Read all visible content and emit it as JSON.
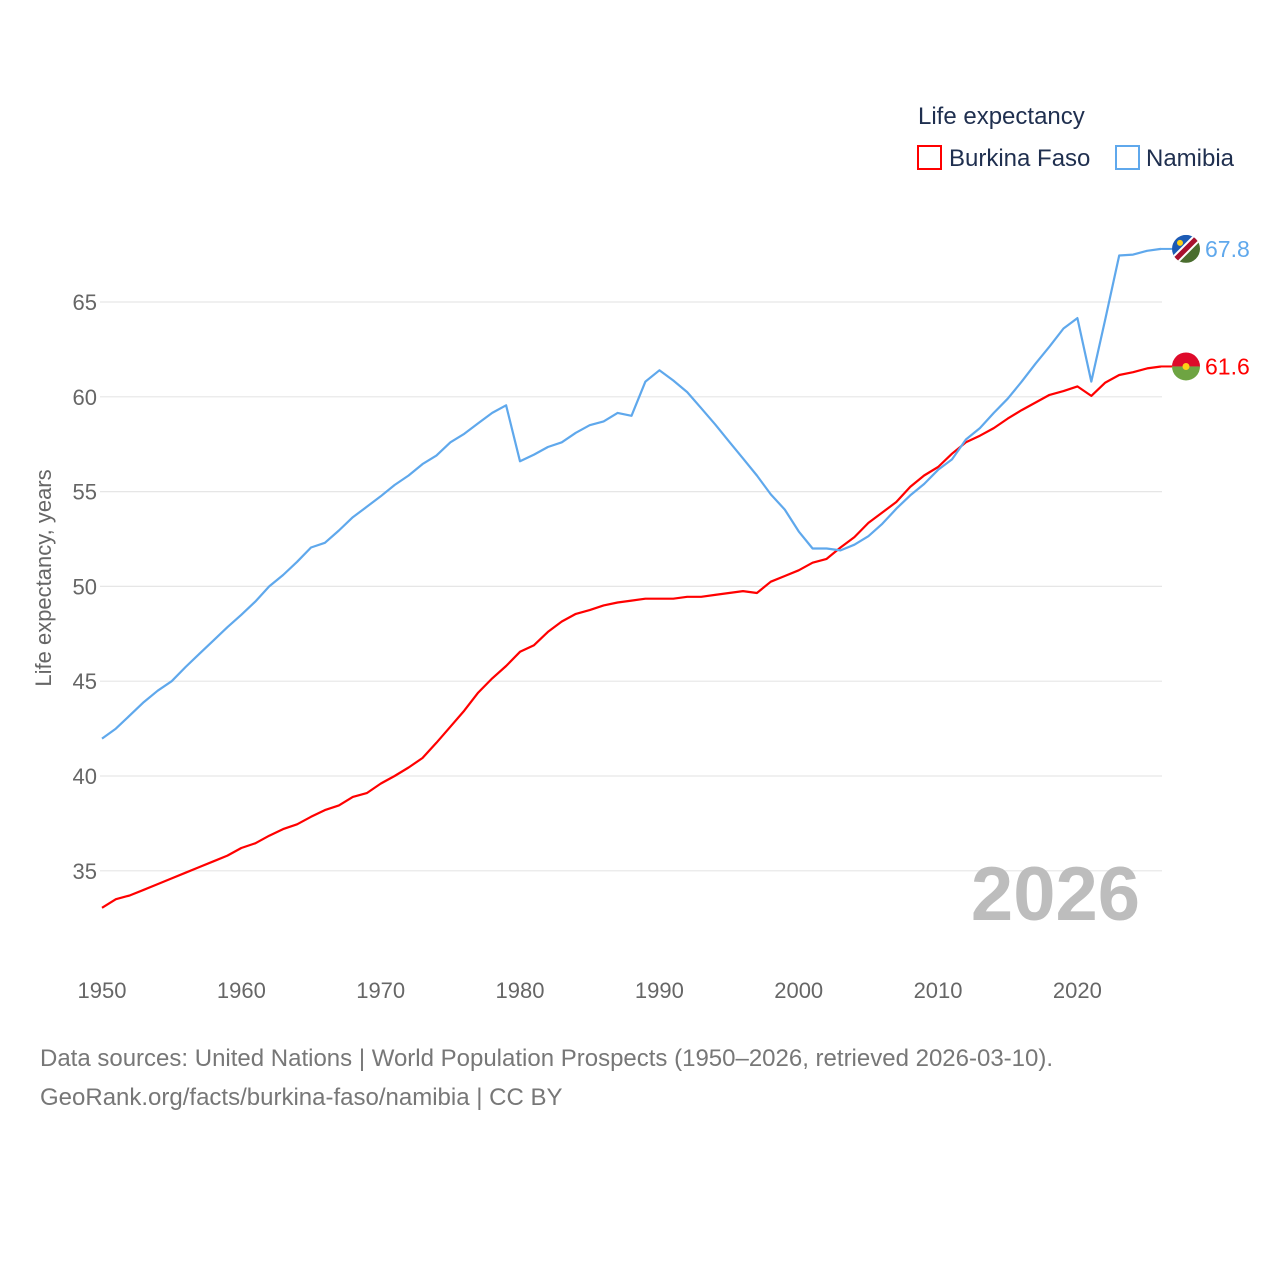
{
  "chart_data": {
    "type": "line",
    "title": "Life expectancy",
    "xlabel": "",
    "ylabel": "Life expectancy, years",
    "xlim": [
      1950,
      2026
    ],
    "ylim": [
      31,
      69
    ],
    "grid": true,
    "legend_position": "top-right",
    "x_ticks": [
      1950,
      1960,
      1970,
      1980,
      1990,
      2000,
      2010,
      2020
    ],
    "y_ticks": [
      35,
      40,
      45,
      50,
      55,
      60,
      65
    ],
    "watermark_year": "2026",
    "x": [
      1950,
      1951,
      1952,
      1953,
      1954,
      1955,
      1956,
      1957,
      1958,
      1959,
      1960,
      1961,
      1962,
      1963,
      1964,
      1965,
      1966,
      1967,
      1968,
      1969,
      1970,
      1971,
      1972,
      1973,
      1974,
      1975,
      1976,
      1977,
      1978,
      1979,
      1980,
      1981,
      1982,
      1983,
      1984,
      1985,
      1986,
      1987,
      1988,
      1989,
      1990,
      1991,
      1992,
      1993,
      1994,
      1995,
      1996,
      1997,
      1998,
      1999,
      2000,
      2001,
      2002,
      2003,
      2004,
      2005,
      2006,
      2007,
      2008,
      2009,
      2010,
      2011,
      2012,
      2013,
      2014,
      2015,
      2016,
      2017,
      2018,
      2019,
      2020,
      2021,
      2022,
      2023,
      2024,
      2025,
      2026
    ],
    "series": [
      {
        "name": "Burkina Faso",
        "color": "#ff0000",
        "flag": "burkina-faso-flag",
        "end_label": "61.6",
        "values": [
          33.05,
          33.5,
          33.7,
          34.0,
          34.3,
          34.6,
          34.9,
          35.2,
          35.5,
          35.8,
          36.2,
          36.45,
          36.85,
          37.2,
          37.45,
          37.85,
          38.2,
          38.45,
          38.9,
          39.1,
          39.6,
          40.0,
          40.45,
          40.95,
          41.75,
          42.6,
          43.45,
          44.4,
          45.15,
          45.8,
          46.55,
          46.9,
          47.6,
          48.15,
          48.55,
          48.75,
          49.0,
          49.15,
          49.25,
          49.35,
          49.35,
          49.35,
          49.45,
          49.45,
          49.55,
          49.65,
          49.75,
          49.65,
          50.25,
          50.55,
          50.85,
          51.25,
          51.45,
          52.05,
          52.6,
          53.35,
          53.9,
          54.45,
          55.25,
          55.85,
          56.3,
          57.0,
          57.6,
          57.95,
          58.35,
          58.85,
          59.3,
          59.7,
          60.1,
          60.3,
          60.55,
          60.05,
          60.75,
          61.15,
          61.3,
          61.5,
          61.6
        ]
      },
      {
        "name": "Namibia",
        "color": "#5fa8ec",
        "flag": "namibia-flag",
        "end_label": "67.8",
        "values": [
          41.97,
          42.5,
          43.2,
          43.9,
          44.5,
          45.0,
          45.75,
          46.45,
          47.15,
          47.85,
          48.5,
          49.2,
          50.0,
          50.6,
          51.3,
          52.05,
          52.3,
          52.95,
          53.65,
          54.2,
          54.75,
          55.35,
          55.85,
          56.45,
          56.9,
          57.6,
          58.05,
          58.6,
          59.15,
          59.55,
          56.6,
          56.95,
          57.35,
          57.6,
          58.1,
          58.5,
          58.7,
          59.15,
          59.0,
          60.8,
          61.4,
          60.86,
          60.25,
          59.4,
          58.55,
          57.65,
          56.75,
          55.85,
          54.85,
          54.05,
          52.9,
          52.0,
          52.0,
          51.9,
          52.2,
          52.65,
          53.3,
          54.1,
          54.8,
          55.4,
          56.15,
          56.7,
          57.75,
          58.35,
          59.15,
          59.9,
          60.8,
          61.75,
          62.65,
          63.6,
          64.15,
          60.8,
          64.1,
          67.45,
          67.5,
          67.7,
          67.8
        ]
      }
    ]
  },
  "footer": {
    "line1": "Data sources: United Nations | World Population Prospects (1950–2026, retrieved 2026-03-10).",
    "line2": "GeoRank.org/facts/burkina-faso/namibia | CC BY"
  }
}
